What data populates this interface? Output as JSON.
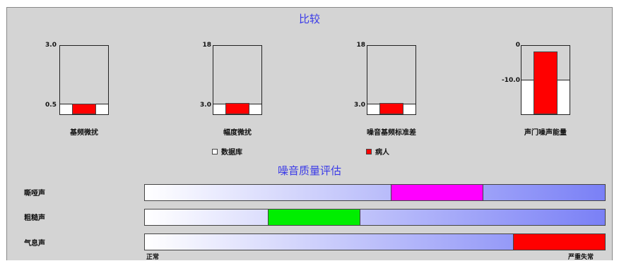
{
  "comparison": {
    "title": "比较",
    "legend": {
      "database_label": "数据库",
      "patient_label": "病人",
      "database_color": "#ffffff",
      "patient_color": "#ff0000"
    },
    "charts": [
      {
        "label": "基频微扰",
        "ymax": "3.0",
        "mark": "0.5",
        "patient_color": "#ff0000"
      },
      {
        "label": "幅度微扰",
        "ymax": "18",
        "mark": "3.0",
        "patient_color": "#ff0000"
      },
      {
        "label": "噪音基频标准差",
        "ymax": "18",
        "mark": "3.0",
        "patient_color": "#ff0000"
      },
      {
        "label": "声门噪声能量",
        "ymax": "0",
        "mark": "-10.0",
        "patient_color": "#ff0000"
      }
    ]
  },
  "assessment": {
    "title": "噪音质量评估",
    "scale_min_label": "正常",
    "scale_max_label": "严重失常",
    "rows": [
      {
        "label": "嘶哑声",
        "range": [
          0.535,
          0.735
        ],
        "color": "#ff00ff"
      },
      {
        "label": "粗糙声",
        "range": [
          0.268,
          0.468
        ],
        "color": "#00ee00"
      },
      {
        "label": "气息声",
        "range": [
          0.802,
          1.0
        ],
        "color": "#ff0000"
      }
    ]
  }
}
